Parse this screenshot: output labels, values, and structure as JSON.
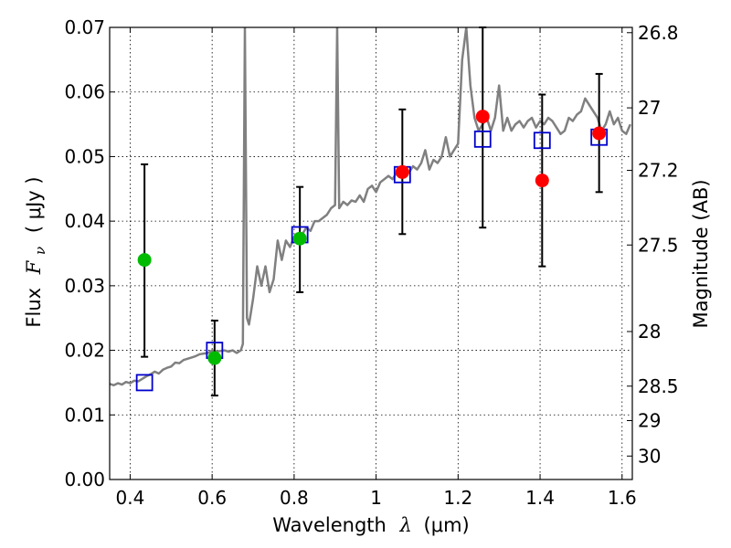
{
  "chart_data": {
    "type": "scatter",
    "xlabel": {
      "prefix": "Wavelength",
      "symbol": "λ",
      "unit": "(μm)"
    },
    "ylabel": {
      "prefix": "Flux",
      "symbol": "F",
      "subscript": "ν",
      "unit": "( μJy )"
    },
    "y2label": "Magnitude (AB)",
    "xlim": [
      0.35,
      1.625
    ],
    "ylim": [
      0.0,
      0.07
    ],
    "grid": true,
    "xticks": [
      {
        "value": 0.4,
        "label": "0.4"
      },
      {
        "value": 0.6,
        "label": "0.6"
      },
      {
        "value": 0.8,
        "label": "0.8"
      },
      {
        "value": 1.0,
        "label": "1"
      },
      {
        "value": 1.2,
        "label": "1.2"
      },
      {
        "value": 1.4,
        "label": "1.4"
      },
      {
        "value": 1.6,
        "label": "1.6"
      }
    ],
    "yticks": [
      {
        "value": 0.0,
        "label": "0.00"
      },
      {
        "value": 0.01,
        "label": "0.01"
      },
      {
        "value": 0.02,
        "label": "0.02"
      },
      {
        "value": 0.03,
        "label": "0.03"
      },
      {
        "value": 0.04,
        "label": "0.04"
      },
      {
        "value": 0.05,
        "label": "0.05"
      },
      {
        "value": 0.06,
        "label": "0.06"
      },
      {
        "value": 0.07,
        "label": "0.07"
      }
    ],
    "y2ticks": [
      {
        "value": 26.8,
        "label": "26.8"
      },
      {
        "value": 27.0,
        "label": "27"
      },
      {
        "value": 27.2,
        "label": "27.2"
      },
      {
        "value": 27.5,
        "label": "27.5"
      },
      {
        "value": 28.0,
        "label": "28"
      },
      {
        "value": 28.5,
        "label": "28.5"
      },
      {
        "value": 29.0,
        "label": "29"
      },
      {
        "value": 30.0,
        "label": "30"
      }
    ],
    "colors": {
      "template": "#808080",
      "model_box": "#0000cc",
      "optical": "#00bb00",
      "nir": "#ff0000",
      "errorbar": "#000000"
    },
    "template_spectrum": [
      [
        0.35,
        0.0148
      ],
      [
        0.36,
        0.0146
      ],
      [
        0.37,
        0.0149
      ],
      [
        0.38,
        0.0147
      ],
      [
        0.39,
        0.0151
      ],
      [
        0.4,
        0.0149
      ],
      [
        0.41,
        0.0153
      ],
      [
        0.42,
        0.0152
      ],
      [
        0.43,
        0.0156
      ],
      [
        0.44,
        0.016
      ],
      [
        0.45,
        0.0163
      ],
      [
        0.46,
        0.0167
      ],
      [
        0.47,
        0.0164
      ],
      [
        0.48,
        0.017
      ],
      [
        0.49,
        0.0173
      ],
      [
        0.5,
        0.0175
      ],
      [
        0.51,
        0.0181
      ],
      [
        0.52,
        0.018
      ],
      [
        0.53,
        0.0185
      ],
      [
        0.54,
        0.0187
      ],
      [
        0.55,
        0.0189
      ],
      [
        0.56,
        0.0191
      ],
      [
        0.57,
        0.0194
      ],
      [
        0.58,
        0.0195
      ],
      [
        0.59,
        0.0196
      ],
      [
        0.6,
        0.02
      ],
      [
        0.61,
        0.0198
      ],
      [
        0.62,
        0.0199
      ],
      [
        0.63,
        0.02
      ],
      [
        0.64,
        0.0198
      ],
      [
        0.65,
        0.02
      ],
      [
        0.66,
        0.0196
      ],
      [
        0.67,
        0.02
      ],
      [
        0.675,
        0.021
      ],
      [
        0.68,
        0.07
      ],
      [
        0.685,
        0.025
      ],
      [
        0.69,
        0.024
      ],
      [
        0.7,
        0.028
      ],
      [
        0.71,
        0.033
      ],
      [
        0.72,
        0.03
      ],
      [
        0.73,
        0.033
      ],
      [
        0.74,
        0.029
      ],
      [
        0.75,
        0.031
      ],
      [
        0.76,
        0.037
      ],
      [
        0.77,
        0.034
      ],
      [
        0.78,
        0.037
      ],
      [
        0.79,
        0.036
      ],
      [
        0.8,
        0.0375
      ],
      [
        0.81,
        0.037
      ],
      [
        0.82,
        0.038
      ],
      [
        0.83,
        0.039
      ],
      [
        0.84,
        0.0385
      ],
      [
        0.85,
        0.04
      ],
      [
        0.86,
        0.04
      ],
      [
        0.87,
        0.0405
      ],
      [
        0.88,
        0.041
      ],
      [
        0.89,
        0.042
      ],
      [
        0.9,
        0.0425
      ],
      [
        0.905,
        0.07
      ],
      [
        0.91,
        0.042
      ],
      [
        0.92,
        0.043
      ],
      [
        0.93,
        0.0425
      ],
      [
        0.94,
        0.0432
      ],
      [
        0.95,
        0.043
      ],
      [
        0.96,
        0.044
      ],
      [
        0.97,
        0.043
      ],
      [
        0.98,
        0.045
      ],
      [
        0.99,
        0.0455
      ],
      [
        1.0,
        0.0445
      ],
      [
        1.01,
        0.046
      ],
      [
        1.02,
        0.0465
      ],
      [
        1.03,
        0.047
      ],
      [
        1.04,
        0.0465
      ],
      [
        1.05,
        0.0475
      ],
      [
        1.06,
        0.047
      ],
      [
        1.07,
        0.048
      ],
      [
        1.08,
        0.0475
      ],
      [
        1.09,
        0.0485
      ],
      [
        1.1,
        0.048
      ],
      [
        1.11,
        0.049
      ],
      [
        1.12,
        0.051
      ],
      [
        1.13,
        0.048
      ],
      [
        1.14,
        0.0495
      ],
      [
        1.15,
        0.049
      ],
      [
        1.16,
        0.05
      ],
      [
        1.17,
        0.053
      ],
      [
        1.18,
        0.05
      ],
      [
        1.19,
        0.051
      ],
      [
        1.2,
        0.052
      ],
      [
        1.21,
        0.065
      ],
      [
        1.22,
        0.07
      ],
      [
        1.23,
        0.061
      ],
      [
        1.24,
        0.056
      ],
      [
        1.25,
        0.054
      ],
      [
        1.26,
        0.055
      ],
      [
        1.27,
        0.056
      ],
      [
        1.28,
        0.054
      ],
      [
        1.29,
        0.056
      ],
      [
        1.3,
        0.061
      ],
      [
        1.31,
        0.054
      ],
      [
        1.32,
        0.056
      ],
      [
        1.33,
        0.054
      ],
      [
        1.34,
        0.055
      ],
      [
        1.35,
        0.0555
      ],
      [
        1.36,
        0.0545
      ],
      [
        1.37,
        0.0555
      ],
      [
        1.38,
        0.056
      ],
      [
        1.39,
        0.0545
      ],
      [
        1.4,
        0.0555
      ],
      [
        1.41,
        0.055
      ],
      [
        1.42,
        0.056
      ],
      [
        1.43,
        0.0555
      ],
      [
        1.44,
        0.0545
      ],
      [
        1.45,
        0.0535
      ],
      [
        1.46,
        0.054
      ],
      [
        1.47,
        0.056
      ],
      [
        1.48,
        0.0555
      ],
      [
        1.49,
        0.0565
      ],
      [
        1.5,
        0.057
      ],
      [
        1.51,
        0.059
      ],
      [
        1.52,
        0.058
      ],
      [
        1.53,
        0.057
      ],
      [
        1.54,
        0.056
      ],
      [
        1.55,
        0.054
      ],
      [
        1.56,
        0.055
      ],
      [
        1.57,
        0.057
      ],
      [
        1.58,
        0.055
      ],
      [
        1.59,
        0.056
      ],
      [
        1.6,
        0.054
      ],
      [
        1.61,
        0.0535
      ],
      [
        1.62,
        0.055
      ]
    ],
    "model_boxes": [
      {
        "x": 0.435,
        "y": 0.015
      },
      {
        "x": 0.606,
        "y": 0.02
      },
      {
        "x": 0.814,
        "y": 0.0379
      },
      {
        "x": 1.064,
        "y": 0.0472
      },
      {
        "x": 1.26,
        "y": 0.0527
      },
      {
        "x": 1.405,
        "y": 0.0525
      },
      {
        "x": 1.544,
        "y": 0.053
      }
    ],
    "observed": [
      {
        "x": 0.435,
        "y": 0.034,
        "yerr_low": 0.019,
        "yerr_high": 0.0488,
        "band": "optical"
      },
      {
        "x": 0.606,
        "y": 0.0188,
        "yerr_low": 0.013,
        "yerr_high": 0.0246,
        "band": "optical"
      },
      {
        "x": 0.814,
        "y": 0.0373,
        "yerr_low": 0.029,
        "yerr_high": 0.0453,
        "band": "optical"
      },
      {
        "x": 1.064,
        "y": 0.0476,
        "yerr_low": 0.038,
        "yerr_high": 0.0573,
        "band": "nir"
      },
      {
        "x": 1.26,
        "y": 0.0562,
        "yerr_low": 0.039,
        "yerr_high": 0.07,
        "band": "nir"
      },
      {
        "x": 1.405,
        "y": 0.0463,
        "yerr_low": 0.033,
        "yerr_high": 0.0596,
        "band": "nir"
      },
      {
        "x": 1.544,
        "y": 0.0536,
        "yerr_low": 0.0445,
        "yerr_high": 0.0628,
        "band": "nir"
      }
    ]
  }
}
